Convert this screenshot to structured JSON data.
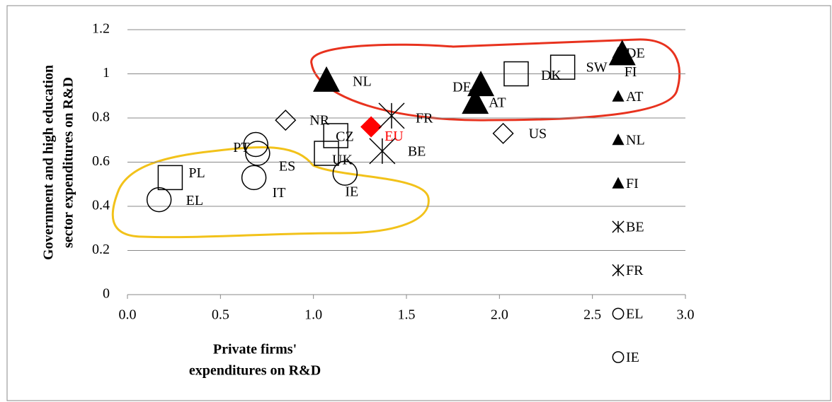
{
  "chart_data": {
    "type": "scatter",
    "y_title": [
      "Government and high education",
      "sector expenditures on R&D"
    ],
    "x_title": [
      "Private firms'",
      "expenditures on R&D"
    ],
    "xlim": [
      0,
      3
    ],
    "ylim": [
      0,
      1.2
    ],
    "xticks": [
      {
        "value": 0,
        "label": "0.0"
      },
      0.5,
      {
        "value": 1,
        "label": "1.0"
      },
      1.5,
      {
        "value": 2,
        "label": "2.0"
      },
      2.5,
      {
        "value": 3,
        "label": "3.0"
      }
    ],
    "yticks": [
      0,
      0.2,
      0.4,
      0.6,
      0.8,
      1,
      1.2
    ],
    "grid": true,
    "points": [
      {
        "label": "EL",
        "marker": "circle",
        "color": "#000000",
        "x": 0.17,
        "y": 0.43
      },
      {
        "label": "PL",
        "marker": "square",
        "color": "#000000",
        "x": 0.23,
        "y": 0.53
      },
      {
        "label": "IT",
        "marker": "circle",
        "color": "#000000",
        "x": 0.68,
        "y": 0.53
      },
      {
        "label": "PT",
        "marker": "circle",
        "color": "#000000",
        "x": 0.69,
        "y": 0.68
      },
      {
        "label": "ES",
        "marker": "circle",
        "color": "#000000",
        "x": 0.7,
        "y": 0.64
      },
      {
        "label": "NR",
        "marker": "diamond",
        "color": "#000000",
        "x": 0.85,
        "y": 0.79
      },
      {
        "label": "NL",
        "marker": "triangle",
        "color": "#000000",
        "x": 1.07,
        "y": 0.97
      },
      {
        "label": "UK",
        "marker": "square",
        "color": "#000000",
        "x": 1.07,
        "y": 0.64
      },
      {
        "label": "CZ",
        "marker": "square",
        "color": "#000000",
        "x": 1.12,
        "y": 0.72
      },
      {
        "label": "IE",
        "marker": "circle",
        "color": "#000000",
        "x": 1.17,
        "y": 0.55
      },
      {
        "label": "EU",
        "marker": "diamond-filled",
        "color": "#ff0000",
        "x": 1.31,
        "y": 0.76
      },
      {
        "label": "BE",
        "marker": "star",
        "color": "#000000",
        "x": 1.37,
        "y": 0.65
      },
      {
        "label": "FR",
        "marker": "star",
        "color": "#000000",
        "x": 1.42,
        "y": 0.81
      },
      {
        "label": "DE",
        "marker": "triangle",
        "color": "#000000",
        "x": 1.9,
        "y": 0.95
      },
      {
        "label": "AT",
        "marker": "triangle",
        "color": "#000000",
        "x": 1.87,
        "y": 0.87
      },
      {
        "label": "US",
        "marker": "diamond",
        "color": "#000000",
        "x": 2.02,
        "y": 0.73
      },
      {
        "label": "DK",
        "marker": "square",
        "color": "#000000",
        "x": 2.09,
        "y": 1
      },
      {
        "label": "SW",
        "marker": "square",
        "color": "#000000",
        "x": 2.34,
        "y": 1.03
      },
      {
        "label": "FI",
        "marker": "triangle",
        "color": "#000000",
        "x": 2.66,
        "y": 1.09
      }
    ],
    "legend": [
      {
        "label": "DE",
        "marker": "triangle"
      },
      {
        "label": "AT",
        "marker": "triangle"
      },
      {
        "label": "NL",
        "marker": "triangle"
      },
      {
        "label": "FI",
        "marker": "triangle"
      },
      {
        "label": "BE",
        "marker": "star"
      },
      {
        "label": "FR",
        "marker": "star"
      },
      {
        "label": "EL",
        "marker": "circle"
      },
      {
        "label": "IE",
        "marker": "circle"
      }
    ]
  }
}
